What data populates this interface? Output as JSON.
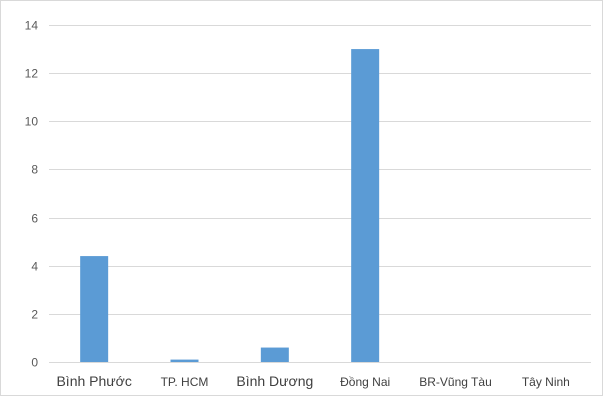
{
  "chart_data": {
    "type": "bar",
    "title": "",
    "xlabel": "",
    "ylabel": "",
    "categories": [
      "Bình Phước",
      "TP. HCM",
      "Bình Dương",
      "Đồng Nai",
      "BR-Vũng Tàu",
      "Tây Ninh"
    ],
    "values": [
      4.4,
      0.1,
      0.6,
      13,
      0,
      0
    ],
    "ylim": [
      0,
      14
    ],
    "yticks": [
      0,
      2,
      4,
      6,
      8,
      10,
      12,
      14
    ],
    "grid": true,
    "legend": "none",
    "bar_color": "#5b9bd5",
    "grid_color": "#d9d9d9"
  }
}
